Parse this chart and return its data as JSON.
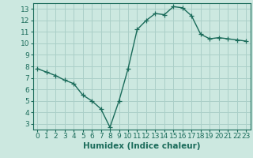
{
  "x": [
    0,
    1,
    2,
    3,
    4,
    5,
    6,
    7,
    8,
    9,
    10,
    11,
    12,
    13,
    14,
    15,
    16,
    17,
    18,
    19,
    20,
    21,
    22,
    23
  ],
  "y": [
    7.8,
    7.5,
    7.2,
    6.8,
    6.5,
    5.5,
    5.0,
    4.3,
    2.7,
    5.0,
    7.8,
    11.2,
    12.0,
    12.6,
    12.5,
    13.2,
    13.1,
    12.4,
    10.8,
    10.4,
    10.5,
    10.4,
    10.3,
    10.2
  ],
  "color": "#1a6b5a",
  "bg_color": "#cce8e0",
  "grid_color": "#aacfc8",
  "xlabel": "Humidex (Indice chaleur)",
  "ylim": [
    2.5,
    13.5
  ],
  "xlim": [
    -0.5,
    23.5
  ],
  "yticks": [
    3,
    4,
    5,
    6,
    7,
    8,
    9,
    10,
    11,
    12,
    13
  ],
  "xticks": [
    0,
    1,
    2,
    3,
    4,
    5,
    6,
    7,
    8,
    9,
    10,
    11,
    12,
    13,
    14,
    15,
    16,
    17,
    18,
    19,
    20,
    21,
    22,
    23
  ],
  "marker": "+",
  "markersize": 4,
  "linewidth": 1.0,
  "xlabel_fontsize": 7.5,
  "tick_fontsize": 6.5
}
